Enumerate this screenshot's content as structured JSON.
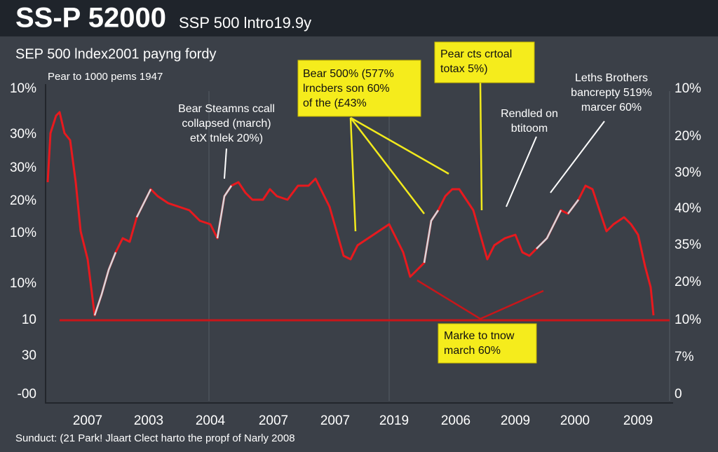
{
  "header": {
    "title": "SS-P 52000",
    "subtitle": "SSP 500 lntro19.9y"
  },
  "chart": {
    "subtitle": "SEP 500 lndex2001 payng fordy",
    "note": "Pear to 1000 pems 1947",
    "left_axis": [
      "10%",
      "30%",
      "30%",
      "20%",
      "10%",
      "10%",
      "10",
      "30",
      "-00"
    ],
    "right_axis": [
      "10%",
      "20%",
      "30%",
      "40%",
      "35%",
      "20%",
      "10%",
      "7%",
      "0"
    ],
    "x_labels": [
      "2007",
      "2003",
      "2004",
      "2007",
      "2007",
      "2019",
      "2006",
      "2009",
      "2000",
      "2009"
    ],
    "annotations": {
      "bear_stearns": [
        "Bear Steamns ccall",
        "collapsed (march)",
        "etX tnlek 20%)"
      ],
      "bear_box": [
        "Bear 500% (577%",
        "lrncbers son 60%",
        "of the (£43%"
      ],
      "pear_box": [
        "Pear cts crtoal",
        "totax 5%)"
      ],
      "rendled": [
        "Rendled on",
        "btitoom"
      ],
      "lehman": [
        "Leths Brothers",
        "bancrepty 519%",
        "marcer 60%"
      ],
      "marke_box": [
        "Marke to tnow",
        "march 60%"
      ]
    }
  },
  "footer": "Sunduct: (21 Park! Jlaart Clect harto the propf of Narly 2008"
}
